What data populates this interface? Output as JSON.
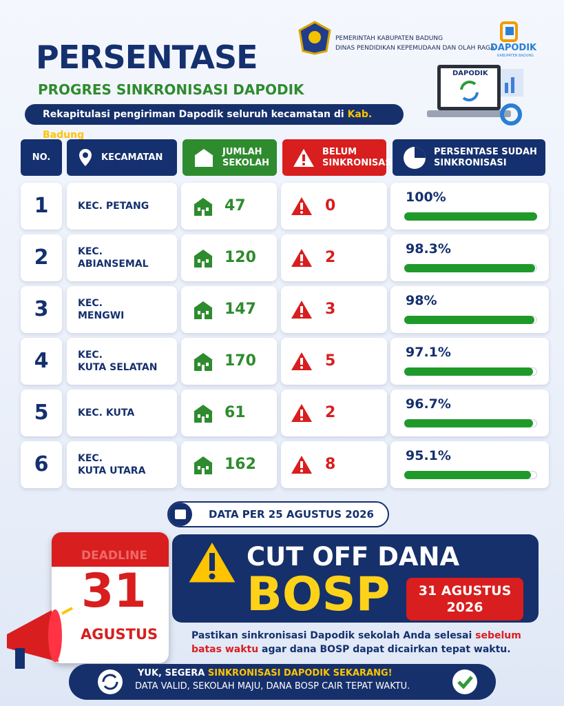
{
  "header": {
    "org_lines": [
      "PEMERINTAH KABUPATEN BADUNG",
      "DINAS PENDIDIKAN KEPEMUDAAN DAN OLAH RAGA"
    ],
    "brand": "DAPODIK",
    "brand_sub": "KABUPATEN BADUNG",
    "title": "PERSENTASE",
    "subtitle": "PROGRES SINKRONISASI DAPODIK",
    "banner": [
      "Rekapitulasi pengiriman Dapodik seluruh kecamatan di ",
      "Kab. Badung",
      "."
    ],
    "laptop_label": "DAPODIK"
  },
  "table": {
    "columns": [
      "NO.",
      "KECAMATAN",
      "JUMLAH SEKOLAH",
      "BELUM SINKRONISASI",
      "PERSENTASE SUDAH SINKRONISASI"
    ],
    "persen_scale": [
      0,
      100
    ],
    "rows": [
      {
        "no": 1,
        "kecamatan": [
          "KEC. PETANG"
        ],
        "jumlah": 47,
        "belum": 0,
        "persen": {
          "value": 100,
          "label": "100%"
        }
      },
      {
        "no": 2,
        "kecamatan": [
          "KEC.",
          "ABIANSEMAL"
        ],
        "jumlah": 120,
        "belum": 2,
        "persen": {
          "value": 98.3,
          "label": "98.3%"
        }
      },
      {
        "no": 3,
        "kecamatan": [
          "KEC.",
          "MENGWI"
        ],
        "jumlah": 147,
        "belum": 3,
        "persen": {
          "value": 98,
          "label": "98%"
        }
      },
      {
        "no": 4,
        "kecamatan": [
          "KEC.",
          "KUTA SELATAN"
        ],
        "jumlah": 170,
        "belum": 5,
        "persen": {
          "value": 97.1,
          "label": "97.1%"
        }
      },
      {
        "no": 5,
        "kecamatan": [
          "KEC. KUTA"
        ],
        "jumlah": 61,
        "belum": 2,
        "persen": {
          "value": 96.7,
          "label": "96.7%"
        }
      },
      {
        "no": 6,
        "kecamatan": [
          "KEC.",
          "KUTA UTARA"
        ],
        "jumlah": 162,
        "belum": 8,
        "persen": {
          "value": 95.1,
          "label": "95.1%"
        }
      }
    ]
  },
  "date_note": "DATA PER 25 AGUSTUS 2026",
  "deadline": {
    "calendar_header": "DEADLINE",
    "day": "31",
    "month": "AGUSTUS",
    "headline": "CUT OFF DANA",
    "program": "BOSP",
    "date_badge": [
      "31 AGUSTUS",
      "2026"
    ],
    "note": [
      "Pastikan sinkronisasi Dapodik sekolah Anda selesai ",
      "sebelum batas waktu",
      " agar dana BOSP dapat dicairkan tepat waktu."
    ]
  },
  "footer": {
    "line1": [
      "YUK, SEGERA ",
      "SINKRONISASI DAPODIK SEKARANG!"
    ],
    "line2": "DATA VALID, SEKOLAH MAJU, DANA BOSP CAIR TEPAT WAKTU."
  }
}
